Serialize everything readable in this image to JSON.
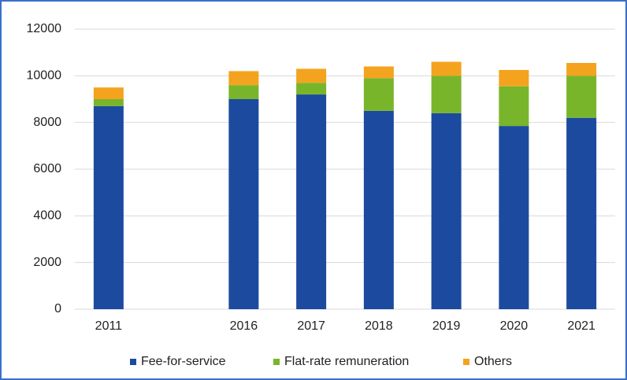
{
  "chart_data": {
    "type": "bar",
    "stacked": true,
    "categories": [
      "2011",
      null,
      "2016",
      "2017",
      "2018",
      "2019",
      "2020",
      "2021"
    ],
    "series": [
      {
        "name": "Fee-for-service",
        "color": "#1c4a9e",
        "values": [
          8700,
          null,
          9000,
          9200,
          8500,
          8400,
          7850,
          8200
        ]
      },
      {
        "name": "Flat-rate remuneration",
        "color": "#79b52a",
        "values": [
          300,
          null,
          600,
          500,
          1400,
          1600,
          1700,
          1800
        ]
      },
      {
        "name": "Others",
        "color": "#f4a31f",
        "values": [
          500,
          null,
          600,
          600,
          500,
          600,
          700,
          550
        ]
      }
    ],
    "ylim": [
      0,
      12000
    ],
    "yticks": [
      0,
      2000,
      4000,
      6000,
      8000,
      10000,
      12000
    ],
    "grid": true,
    "legend": "bottom"
  }
}
